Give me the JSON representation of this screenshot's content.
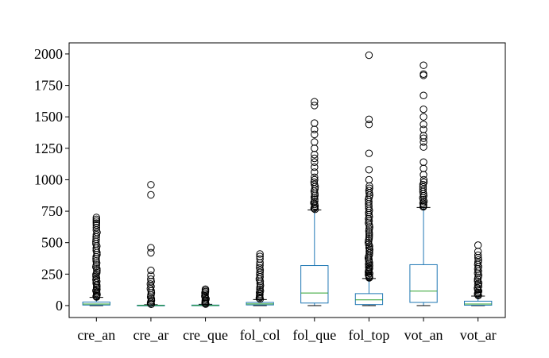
{
  "chart_data": {
    "type": "boxplot",
    "title": "",
    "xlabel": "",
    "ylabel": "",
    "ylim": [
      -95,
      2088
    ],
    "yticks": [
      0,
      250,
      500,
      750,
      1000,
      1250,
      1500,
      1750,
      2000
    ],
    "categories": [
      "cre_an",
      "cre_ar",
      "cre_que",
      "fol_col",
      "fol_que",
      "fol_top",
      "vot_an",
      "vot_ar"
    ],
    "colors": {
      "box": "#1f77b4",
      "median": "#2ca02c",
      "whisker": "#1f77b4",
      "cap": "#000000",
      "flier": "#000000"
    },
    "boxes": [
      {
        "name": "cre_an",
        "whislo": 0,
        "q1": 4,
        "med": 12,
        "q3": 28,
        "whishi": 65,
        "flier_range": [
          68,
          600
        ],
        "fliers": [
          620,
          640,
          655,
          670,
          685,
          700
        ]
      },
      {
        "name": "cre_ar",
        "whislo": 0,
        "q1": 0,
        "med": 1,
        "q3": 3,
        "whishi": 7,
        "flier_range": [
          10,
          210
        ],
        "fliers": [
          240,
          280,
          420,
          460,
          880,
          960
        ]
      },
      {
        "name": "cre_que",
        "whislo": 0,
        "q1": 0,
        "med": 1,
        "q3": 4,
        "whishi": 10,
        "flier_range": [
          12,
          100
        ],
        "fliers": [
          110,
          120,
          130
        ]
      },
      {
        "name": "fol_col",
        "whislo": 0,
        "q1": 5,
        "med": 13,
        "q3": 25,
        "whishi": 48,
        "flier_range": [
          52,
          320
        ],
        "fliers": [
          340,
          370,
          390,
          410
        ]
      },
      {
        "name": "fol_que",
        "whislo": 0,
        "q1": 20,
        "med": 100,
        "q3": 318,
        "whishi": 760,
        "flier_range": [
          765,
          1000
        ],
        "fliers": [
          1020,
          1060,
          1100,
          1140,
          1170,
          1200,
          1250,
          1300,
          1360,
          1400,
          1450,
          1590,
          1620
        ]
      },
      {
        "name": "fol_top",
        "whislo": 0,
        "q1": 8,
        "med": 45,
        "q3": 95,
        "whishi": 215,
        "flier_range": [
          220,
          950
        ],
        "fliers": [
          1000,
          1080,
          1210,
          1440,
          1480,
          1990
        ]
      },
      {
        "name": "vot_an",
        "whislo": 0,
        "q1": 25,
        "med": 115,
        "q3": 325,
        "whishi": 780,
        "flier_range": [
          785,
          1000
        ],
        "fliers": [
          1040,
          1090,
          1140,
          1260,
          1300,
          1330,
          1350,
          1400,
          1440,
          1500,
          1560,
          1670,
          1830,
          1840,
          1910
        ]
      },
      {
        "name": "vot_ar",
        "whislo": 0,
        "q1": 3,
        "med": 12,
        "q3": 35,
        "whishi": 75,
        "flier_range": [
          80,
          380
        ],
        "fliers": [
          400,
          430,
          480
        ]
      }
    ]
  }
}
